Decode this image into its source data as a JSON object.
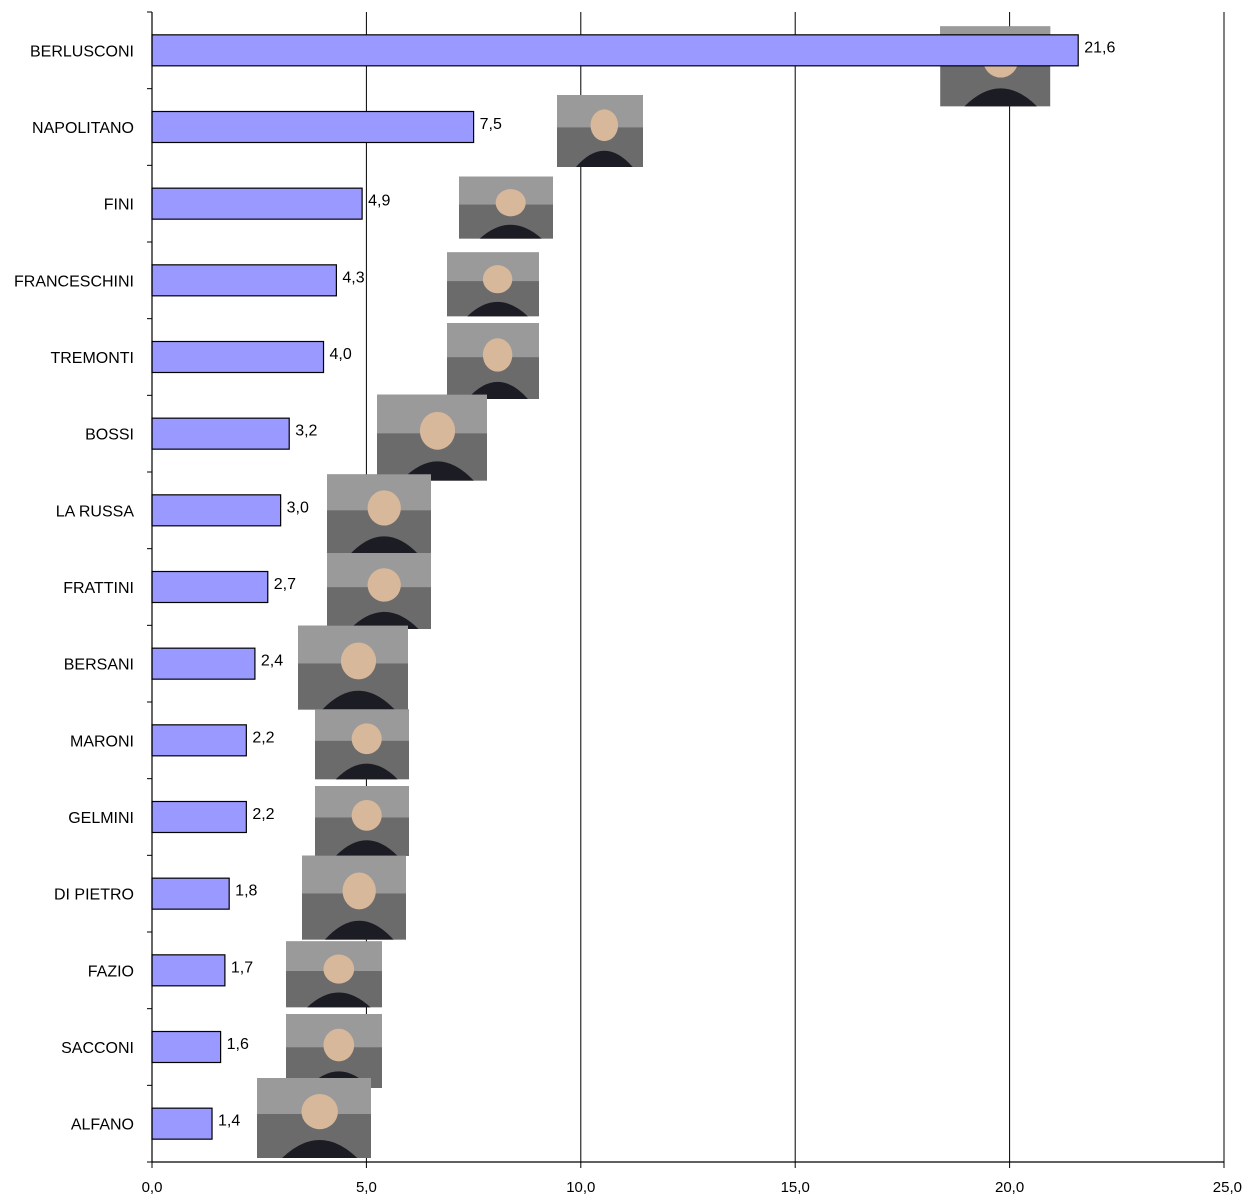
{
  "chart_data": {
    "type": "bar",
    "orientation": "horizontal",
    "categories": [
      "BERLUSCONI",
      "NAPOLITANO",
      "FINI",
      "FRANCESCHINI",
      "TREMONTI",
      "BOSSI",
      "LA RUSSA",
      "FRATTINI",
      "BERSANI",
      "MARONI",
      "GELMINI",
      "DI PIETRO",
      "FAZIO",
      "SACCONI",
      "ALFANO"
    ],
    "values": [
      21.6,
      7.5,
      4.9,
      4.3,
      4.0,
      3.2,
      3.0,
      2.7,
      2.4,
      2.2,
      2.2,
      1.8,
      1.7,
      1.6,
      1.4
    ],
    "value_labels": [
      "21,6",
      "7,5",
      "4,9",
      "4,3",
      "4,0",
      "3,2",
      "3,0",
      "2,7",
      "2,4",
      "2,2",
      "2,2",
      "1,8",
      "1,7",
      "1,6",
      "1,4"
    ],
    "xlim": [
      0,
      25
    ],
    "x_ticks": [
      0,
      5,
      10,
      15,
      20,
      25
    ],
    "x_tick_labels": [
      "0,0",
      "5,0",
      "10,0",
      "15,0",
      "20,0",
      "25,0"
    ],
    "grid": "vertical",
    "bar_color": "#9999ff",
    "bar_edge_color": "#000000",
    "photos": "portrait photo beside each bar"
  }
}
